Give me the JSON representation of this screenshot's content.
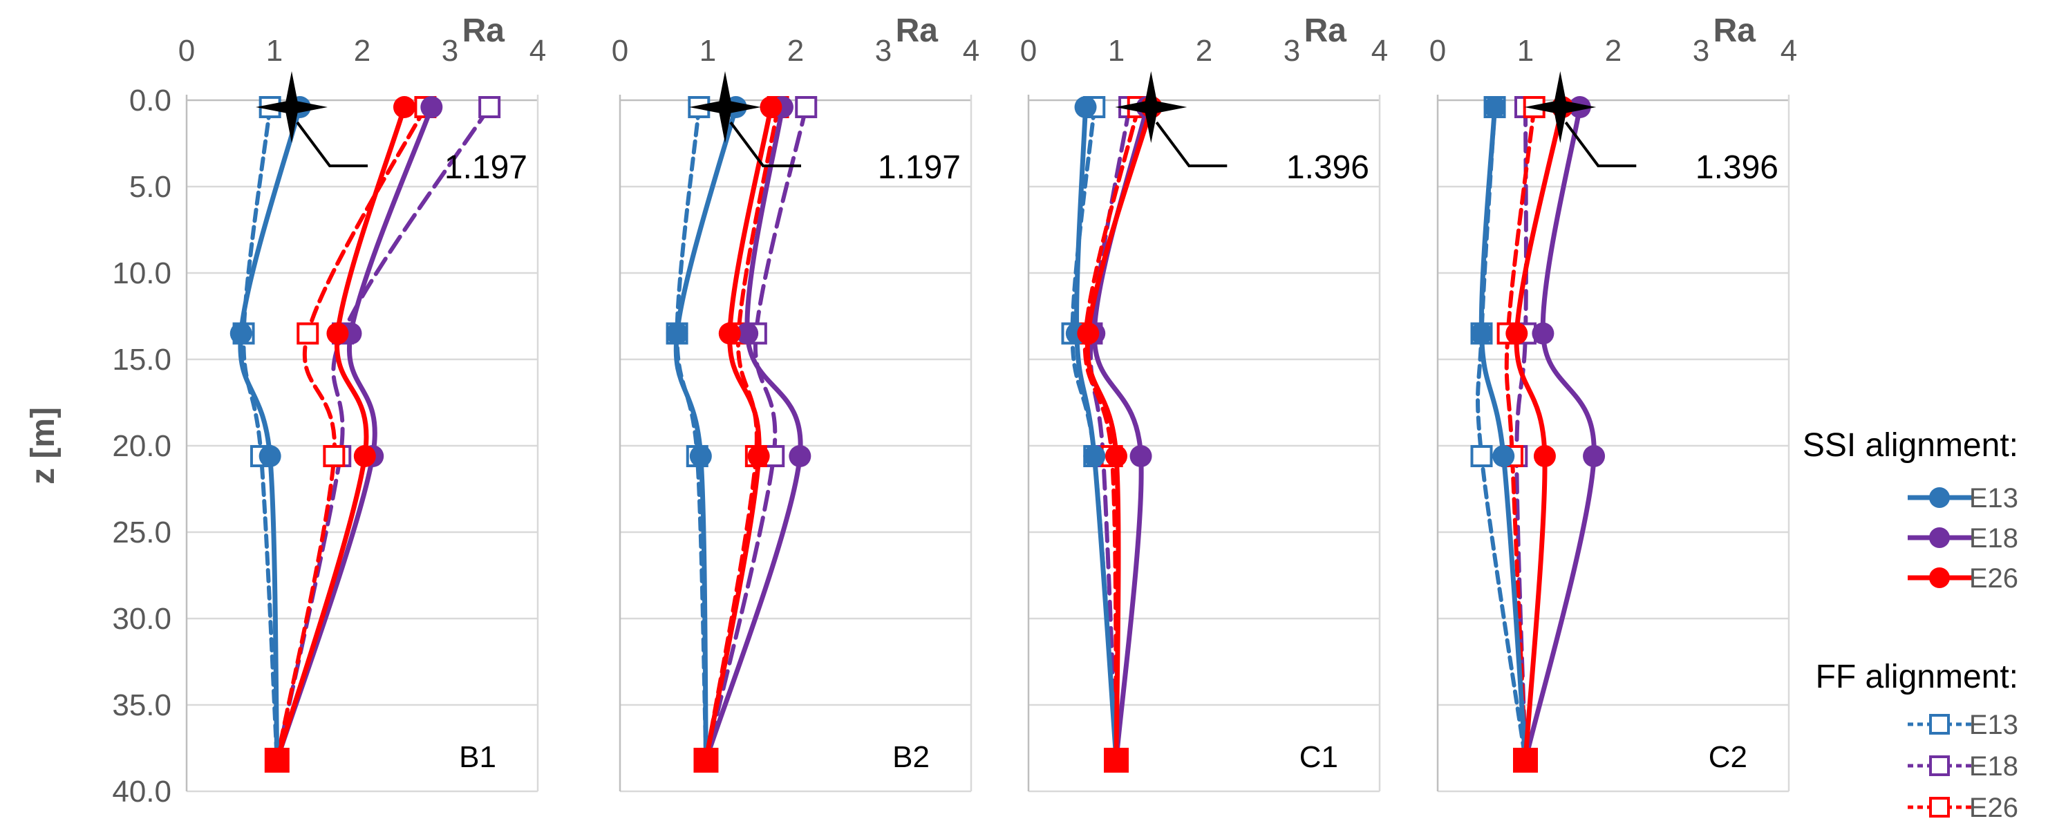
{
  "chart_data": {
    "type": "line",
    "xlabel": "Ra",
    "ylabel": "z [m]",
    "xlim": [
      0,
      4
    ],
    "ylim": [
      0,
      40
    ],
    "x_ticks": [
      "0",
      "1",
      "2",
      "3",
      "4"
    ],
    "y_ticks": [
      "0.0",
      "5.0",
      "10.0",
      "15.0",
      "20.0",
      "25.0",
      "30.0",
      "35.0",
      "40.0"
    ],
    "colors": {
      "E13": "#2e75b6",
      "E18": "#7030a0",
      "E26": "#ff0000",
      "star": "#000000",
      "grid": "#d9d9d9",
      "axis": "#bfbfbf",
      "tick_text": "#595959"
    },
    "legend": {
      "ssi_title": "SSI alignment:",
      "ff_title": "FF alignment:",
      "ssi_items": [
        "E13",
        "E18",
        "E26"
      ],
      "ff_items": [
        "E13",
        "E18",
        "E26"
      ]
    },
    "panels": [
      {
        "name": "B1",
        "star": {
          "ra": 1.197,
          "z": 0.4,
          "label": "1.197"
        },
        "series": [
          {
            "name": "SSI E13",
            "alignment": "SSI",
            "eq": "E13",
            "points": [
              [
                1.29,
                0.4
              ],
              [
                0.62,
                13.5
              ],
              [
                0.95,
                20.6
              ],
              [
                1.03,
                38.2
              ]
            ]
          },
          {
            "name": "SSI E18",
            "alignment": "SSI",
            "eq": "E18",
            "points": [
              [
                2.79,
                0.4
              ],
              [
                1.87,
                13.5
              ],
              [
                2.12,
                20.6
              ],
              [
                1.03,
                38.2
              ]
            ]
          },
          {
            "name": "SSI E26",
            "alignment": "SSI",
            "eq": "E26",
            "points": [
              [
                2.48,
                0.4
              ],
              [
                1.72,
                13.5
              ],
              [
                2.03,
                20.6
              ],
              [
                1.03,
                38.2
              ]
            ]
          },
          {
            "name": "FF E13",
            "alignment": "FF",
            "eq": "E13",
            "points": [
              [
                0.95,
                0.4
              ],
              [
                0.65,
                13.5
              ],
              [
                0.85,
                20.6
              ],
              [
                1.03,
                38.2
              ]
            ]
          },
          {
            "name": "FF E18",
            "alignment": "FF",
            "eq": "E18",
            "points": [
              [
                3.45,
                0.4
              ],
              [
                1.78,
                13.5
              ],
              [
                1.75,
                20.6
              ],
              [
                1.03,
                38.2
              ]
            ]
          },
          {
            "name": "FF E26",
            "alignment": "FF",
            "eq": "E26",
            "points": [
              [
                2.72,
                0.4
              ],
              [
                1.38,
                13.5
              ],
              [
                1.68,
                20.6
              ],
              [
                1.03,
                38.2
              ]
            ]
          }
        ]
      },
      {
        "name": "B2",
        "star": {
          "ra": 1.197,
          "z": 0.4,
          "label": "1.197"
        },
        "series": [
          {
            "name": "SSI E13",
            "alignment": "SSI",
            "eq": "E13",
            "points": [
              [
                1.32,
                0.4
              ],
              [
                0.65,
                13.5
              ],
              [
                0.92,
                20.6
              ],
              [
                0.98,
                38.2
              ]
            ]
          },
          {
            "name": "SSI E18",
            "alignment": "SSI",
            "eq": "E18",
            "points": [
              [
                1.85,
                0.4
              ],
              [
                1.45,
                13.5
              ],
              [
                2.05,
                20.6
              ],
              [
                0.98,
                38.2
              ]
            ]
          },
          {
            "name": "SSI E26",
            "alignment": "SSI",
            "eq": "E26",
            "points": [
              [
                1.72,
                0.4
              ],
              [
                1.25,
                13.5
              ],
              [
                1.58,
                20.6
              ],
              [
                0.98,
                38.2
              ]
            ]
          },
          {
            "name": "FF E13",
            "alignment": "FF",
            "eq": "E13",
            "points": [
              [
                0.9,
                0.4
              ],
              [
                0.65,
                13.5
              ],
              [
                0.88,
                20.6
              ],
              [
                0.98,
                38.2
              ]
            ]
          },
          {
            "name": "FF E18",
            "alignment": "FF",
            "eq": "E18",
            "points": [
              [
                2.12,
                0.4
              ],
              [
                1.55,
                13.5
              ],
              [
                1.75,
                20.6
              ],
              [
                0.98,
                38.2
              ]
            ]
          },
          {
            "name": "FF E26",
            "alignment": "FF",
            "eq": "E26",
            "points": [
              [
                1.8,
                0.4
              ],
              [
                1.35,
                13.5
              ],
              [
                1.55,
                20.6
              ],
              [
                0.98,
                38.2
              ]
            ]
          }
        ]
      },
      {
        "name": "C1",
        "star": {
          "ra": 1.396,
          "z": 0.4,
          "label": "1.396"
        },
        "series": [
          {
            "name": "SSI E13",
            "alignment": "SSI",
            "eq": "E13",
            "points": [
              [
                0.65,
                0.4
              ],
              [
                0.55,
                13.5
              ],
              [
                0.75,
                20.6
              ],
              [
                1.0,
                38.2
              ]
            ]
          },
          {
            "name": "SSI E18",
            "alignment": "SSI",
            "eq": "E18",
            "points": [
              [
                1.35,
                0.4
              ],
              [
                0.75,
                13.5
              ],
              [
                1.28,
                20.6
              ],
              [
                1.0,
                38.2
              ]
            ]
          },
          {
            "name": "SSI E26",
            "alignment": "SSI",
            "eq": "E26",
            "points": [
              [
                1.4,
                0.4
              ],
              [
                0.68,
                13.5
              ],
              [
                1.0,
                20.6
              ],
              [
                1.0,
                38.2
              ]
            ]
          },
          {
            "name": "FF E13",
            "alignment": "FF",
            "eq": "E13",
            "points": [
              [
                0.75,
                0.4
              ],
              [
                0.5,
                13.5
              ],
              [
                0.75,
                20.6
              ],
              [
                1.0,
                38.2
              ]
            ]
          },
          {
            "name": "FF E18",
            "alignment": "FF",
            "eq": "E18",
            "points": [
              [
                1.15,
                0.4
              ],
              [
                0.72,
                13.5
              ],
              [
                0.85,
                20.6
              ],
              [
                1.0,
                38.2
              ]
            ]
          },
          {
            "name": "FF E26",
            "alignment": "FF",
            "eq": "E26",
            "points": [
              [
                1.25,
                0.4
              ],
              [
                0.65,
                13.5
              ],
              [
                0.95,
                20.6
              ],
              [
                1.0,
                38.2
              ]
            ]
          }
        ]
      },
      {
        "name": "C2",
        "star": {
          "ra": 1.396,
          "z": 0.4,
          "label": "1.396"
        },
        "series": [
          {
            "name": "SSI E13",
            "alignment": "SSI",
            "eq": "E13",
            "points": [
              [
                0.65,
                0.4
              ],
              [
                0.5,
                13.5
              ],
              [
                0.75,
                20.6
              ],
              [
                1.0,
                38.2
              ]
            ]
          },
          {
            "name": "SSI E18",
            "alignment": "SSI",
            "eq": "E18",
            "points": [
              [
                1.62,
                0.4
              ],
              [
                1.2,
                13.5
              ],
              [
                1.78,
                20.6
              ],
              [
                1.0,
                38.2
              ]
            ]
          },
          {
            "name": "SSI E26",
            "alignment": "SSI",
            "eq": "E26",
            "points": [
              [
                1.42,
                0.4
              ],
              [
                0.9,
                13.5
              ],
              [
                1.22,
                20.6
              ],
              [
                1.0,
                38.2
              ]
            ]
          },
          {
            "name": "FF E13",
            "alignment": "FF",
            "eq": "E13",
            "points": [
              [
                0.65,
                0.4
              ],
              [
                0.5,
                13.5
              ],
              [
                0.5,
                20.6
              ],
              [
                1.0,
                38.2
              ]
            ]
          },
          {
            "name": "FF E18",
            "alignment": "FF",
            "eq": "E18",
            "points": [
              [
                1.0,
                0.4
              ],
              [
                1.0,
                13.5
              ],
              [
                0.9,
                20.6
              ],
              [
                1.0,
                38.2
              ]
            ]
          },
          {
            "name": "FF E26",
            "alignment": "FF",
            "eq": "E26",
            "points": [
              [
                1.1,
                0.4
              ],
              [
                0.8,
                13.5
              ],
              [
                0.85,
                20.6
              ],
              [
                1.0,
                38.2
              ]
            ]
          }
        ]
      }
    ]
  }
}
